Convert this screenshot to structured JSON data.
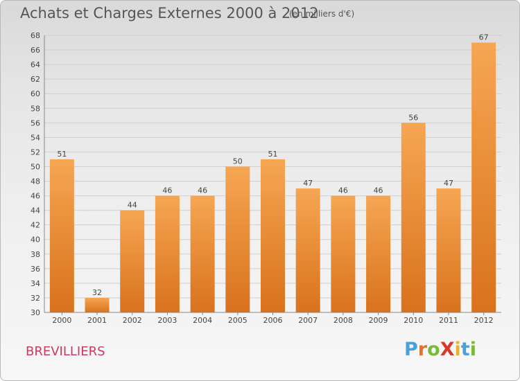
{
  "header": {
    "title": "Achats et Charges Externes 2000 à 2012",
    "unit": "(en milliers d'€)"
  },
  "footer": {
    "place": "BREVILLIERS",
    "logo": {
      "text": "ProXiti",
      "letters": [
        {
          "char": "P",
          "color": "#4aa0d8"
        },
        {
          "char": "r",
          "color": "#e8702a"
        },
        {
          "char": "o",
          "color": "#7ab83a"
        },
        {
          "char": "X",
          "color": "#d83a2a"
        },
        {
          "char": "i",
          "color": "#e8b32a"
        },
        {
          "char": "t",
          "color": "#4aa0d8"
        },
        {
          "char": "i",
          "color": "#7ab83a"
        }
      ]
    }
  },
  "colors": {
    "bar_top": "#f6a653",
    "bar_bottom": "#d9721c",
    "grid": "#cfcfcf",
    "axis": "#888888"
  },
  "chart_data": {
    "type": "bar",
    "title": "Achats et Charges Externes 2000 à 2012",
    "subtitle": "(en milliers d'€)",
    "categories": [
      "2000",
      "2001",
      "2002",
      "2003",
      "2004",
      "2005",
      "2006",
      "2007",
      "2008",
      "2009",
      "2010",
      "2011",
      "2012"
    ],
    "values": [
      51,
      32,
      44,
      46,
      46,
      50,
      51,
      47,
      46,
      46,
      56,
      47,
      67
    ],
    "ylim": [
      30,
      68
    ],
    "yticks": [
      30,
      32,
      34,
      36,
      38,
      40,
      42,
      44,
      46,
      48,
      50,
      52,
      54,
      56,
      58,
      60,
      62,
      64,
      66,
      68
    ],
    "grid": true,
    "legend": "none"
  }
}
